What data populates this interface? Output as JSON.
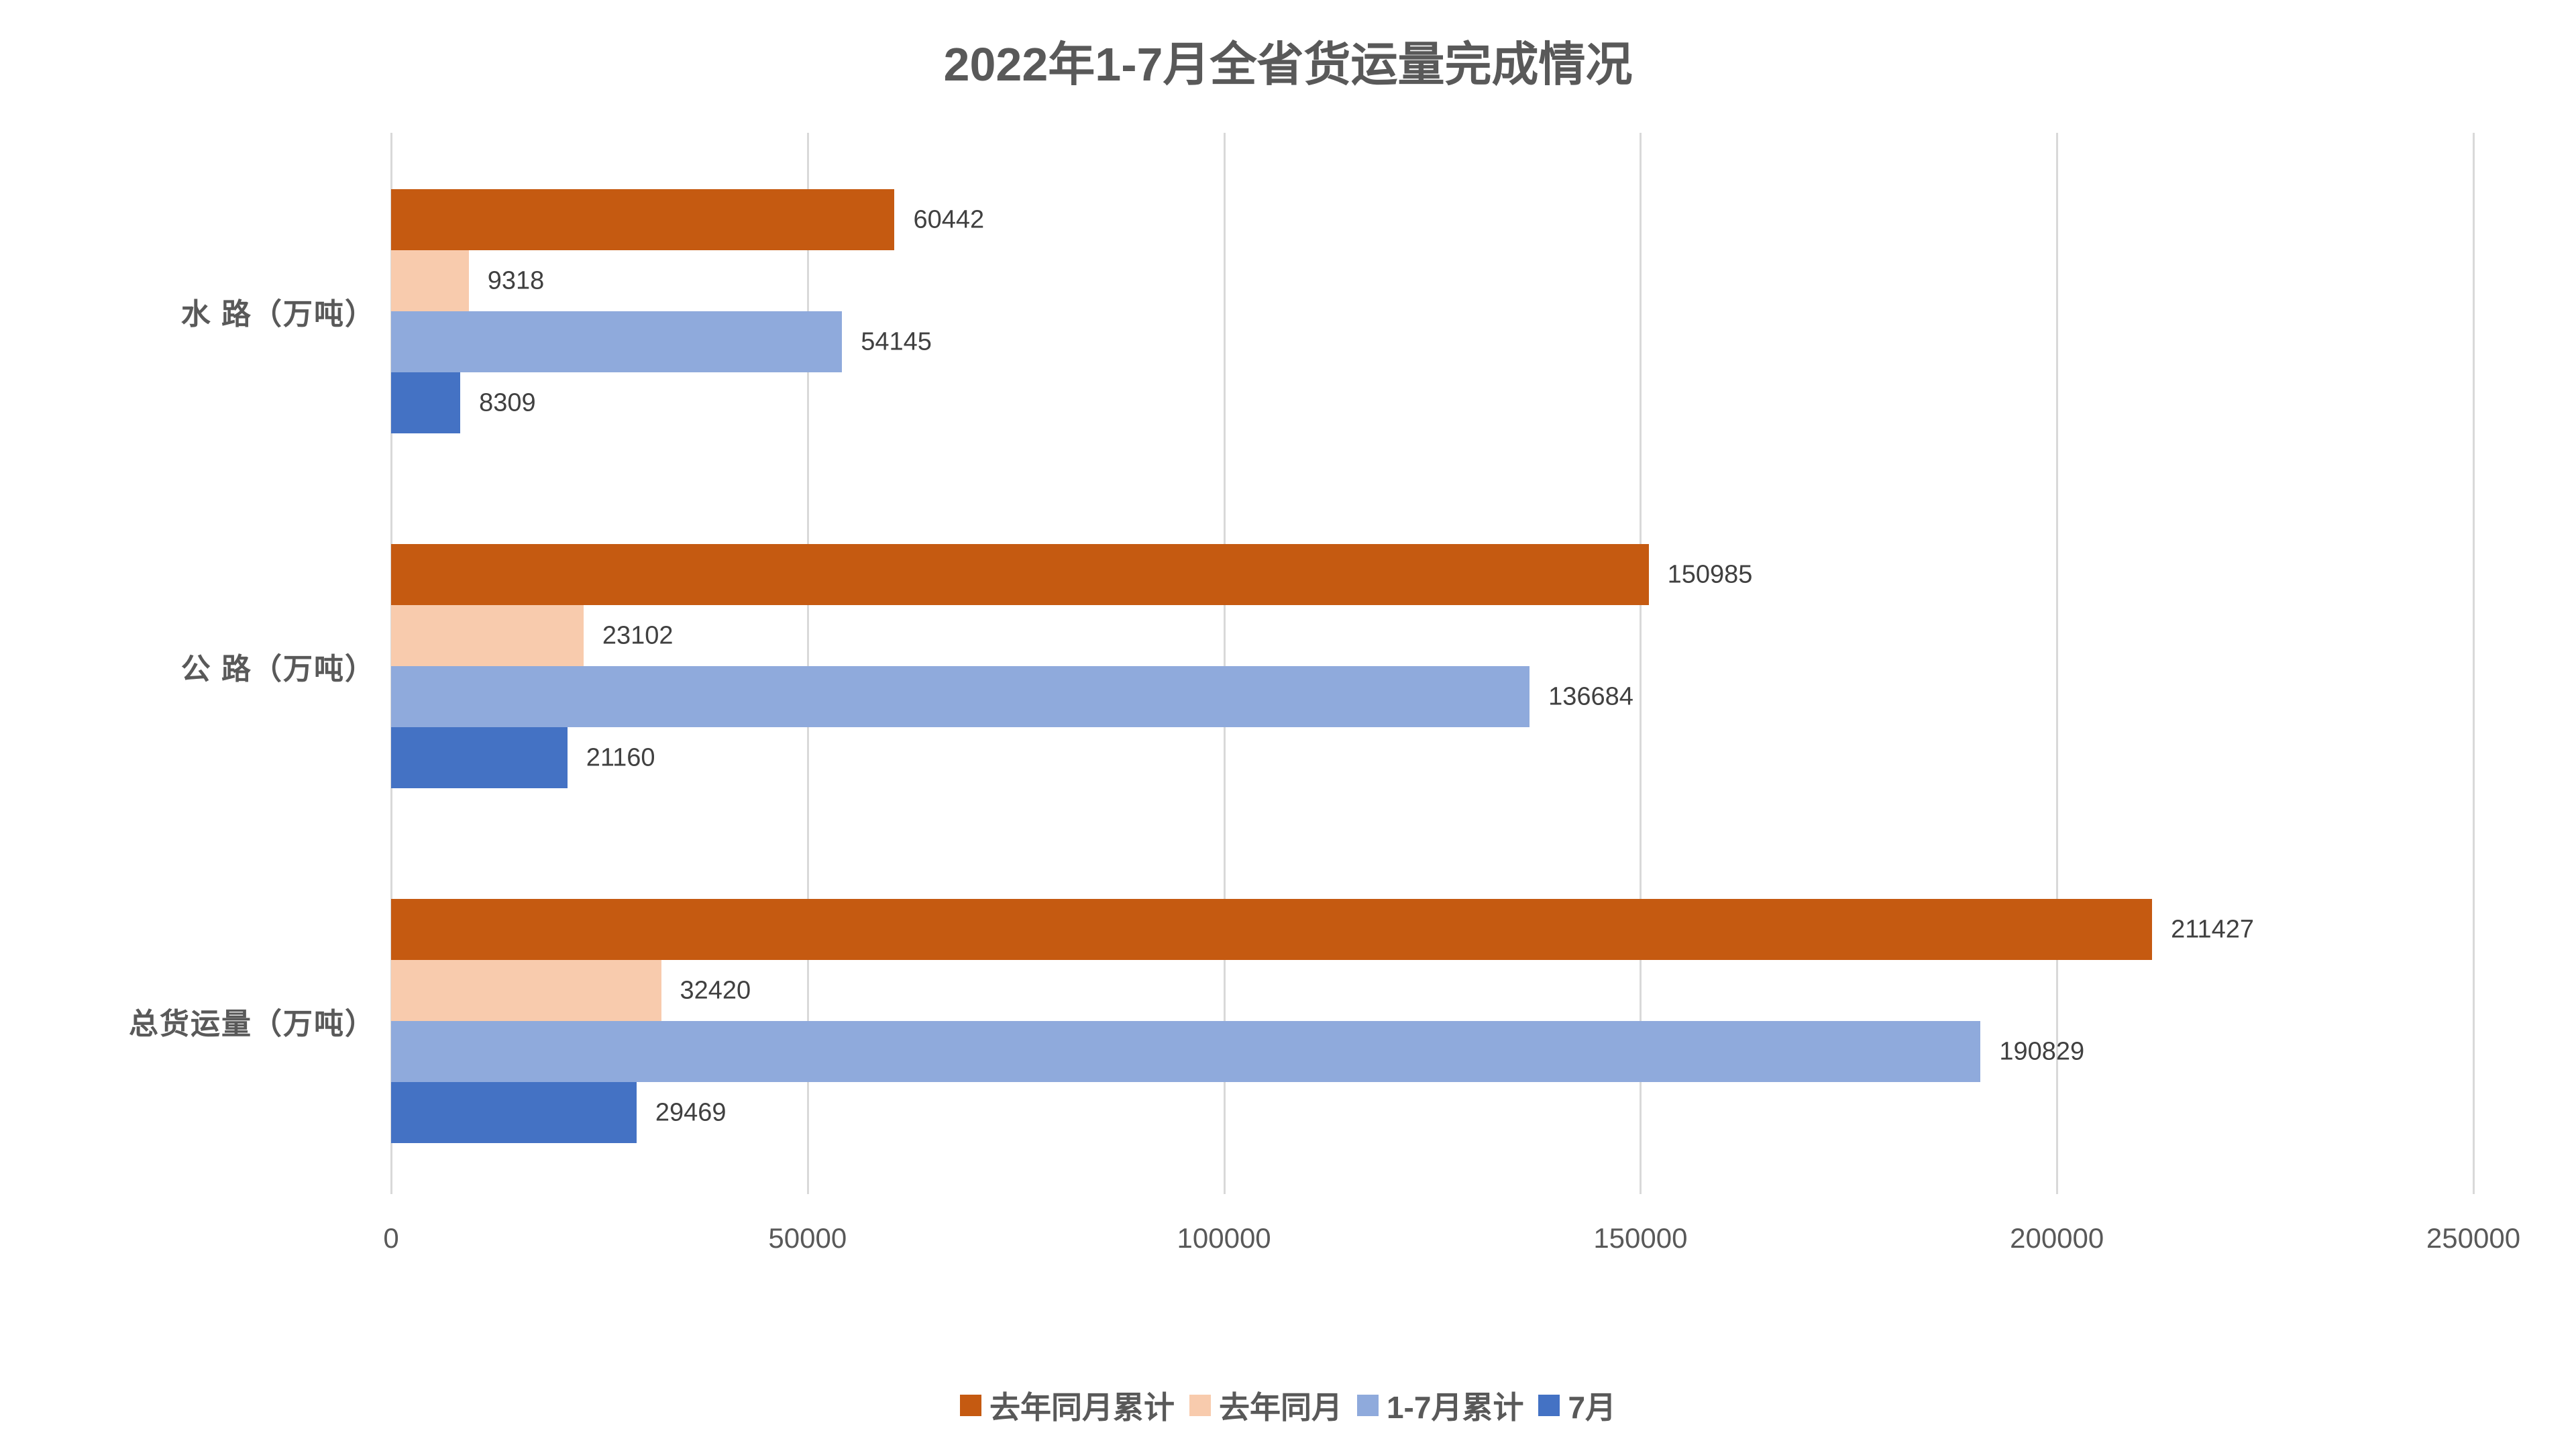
{
  "chart_data": {
    "type": "bar",
    "orientation": "horizontal",
    "title": "2022年1-7月全省货运量完成情况",
    "categories": [
      "水 路（万吨）",
      "公 路（万吨）",
      "总货运量（万吨）"
    ],
    "series": [
      {
        "name": "去年同月累计",
        "color": "#C55A11",
        "values": [
          60442,
          150985,
          211427
        ]
      },
      {
        "name": "去年同月",
        "color": "#F8CBAD",
        "values": [
          9318,
          23102,
          32420
        ]
      },
      {
        "name": "1-7月累计",
        "color": "#8FAADC",
        "values": [
          54145,
          136684,
          190829
        ]
      },
      {
        "name": "7月",
        "color": "#4472C4",
        "values": [
          8309,
          21160,
          29469
        ]
      }
    ],
    "xlim": [
      0,
      250000
    ],
    "xticks": [
      "0",
      "50000",
      "100000",
      "150000",
      "200000",
      "250000"
    ],
    "xlabel": "",
    "ylabel": "",
    "grid": true,
    "legend_position": "bottom"
  }
}
